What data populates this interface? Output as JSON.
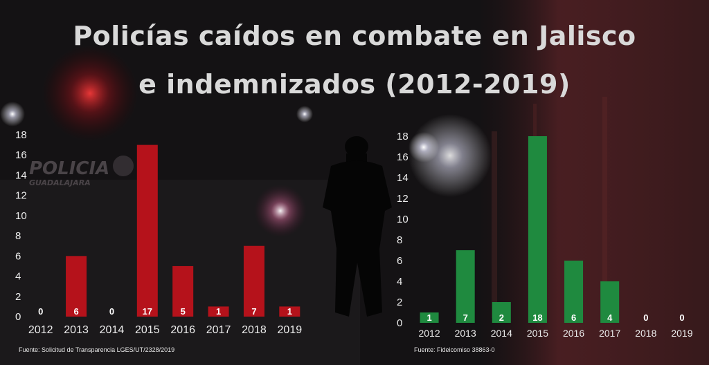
{
  "title": {
    "line1": "Policías caídos en combate en Jalisco",
    "line2": "e indemnizados (2012-2019)"
  },
  "background": {
    "police_text": "POLICIA",
    "city_text": "GUADALAJARA"
  },
  "colors": {
    "left_bars": "#b5121b",
    "right_bars": "#1f8a3f",
    "text": "#ececec"
  },
  "chart_data": [
    {
      "type": "bar",
      "categories": [
        "2012",
        "2013",
        "2014",
        "2015",
        "2016",
        "2017",
        "2018",
        "2019"
      ],
      "values": [
        0,
        6,
        0,
        17,
        5,
        1,
        7,
        1
      ],
      "yticks": [
        0,
        2,
        4,
        6,
        8,
        10,
        12,
        14,
        16,
        18
      ],
      "ylim": [
        0,
        18
      ],
      "color": "#b5121b",
      "source": "Fuente: Solicitud de Transparencia LGES/UT/2328/2019"
    },
    {
      "type": "bar",
      "categories": [
        "2012",
        "2013",
        "2014",
        "2015",
        "2016",
        "2017",
        "2018",
        "2019"
      ],
      "values": [
        1,
        7,
        2,
        18,
        6,
        4,
        0,
        0
      ],
      "yticks": [
        0,
        2,
        4,
        6,
        8,
        10,
        12,
        14,
        16,
        18
      ],
      "ylim": [
        0,
        18
      ],
      "color": "#1f8a3f",
      "source": "Fuente: Fideicomiso 38863-0"
    }
  ]
}
